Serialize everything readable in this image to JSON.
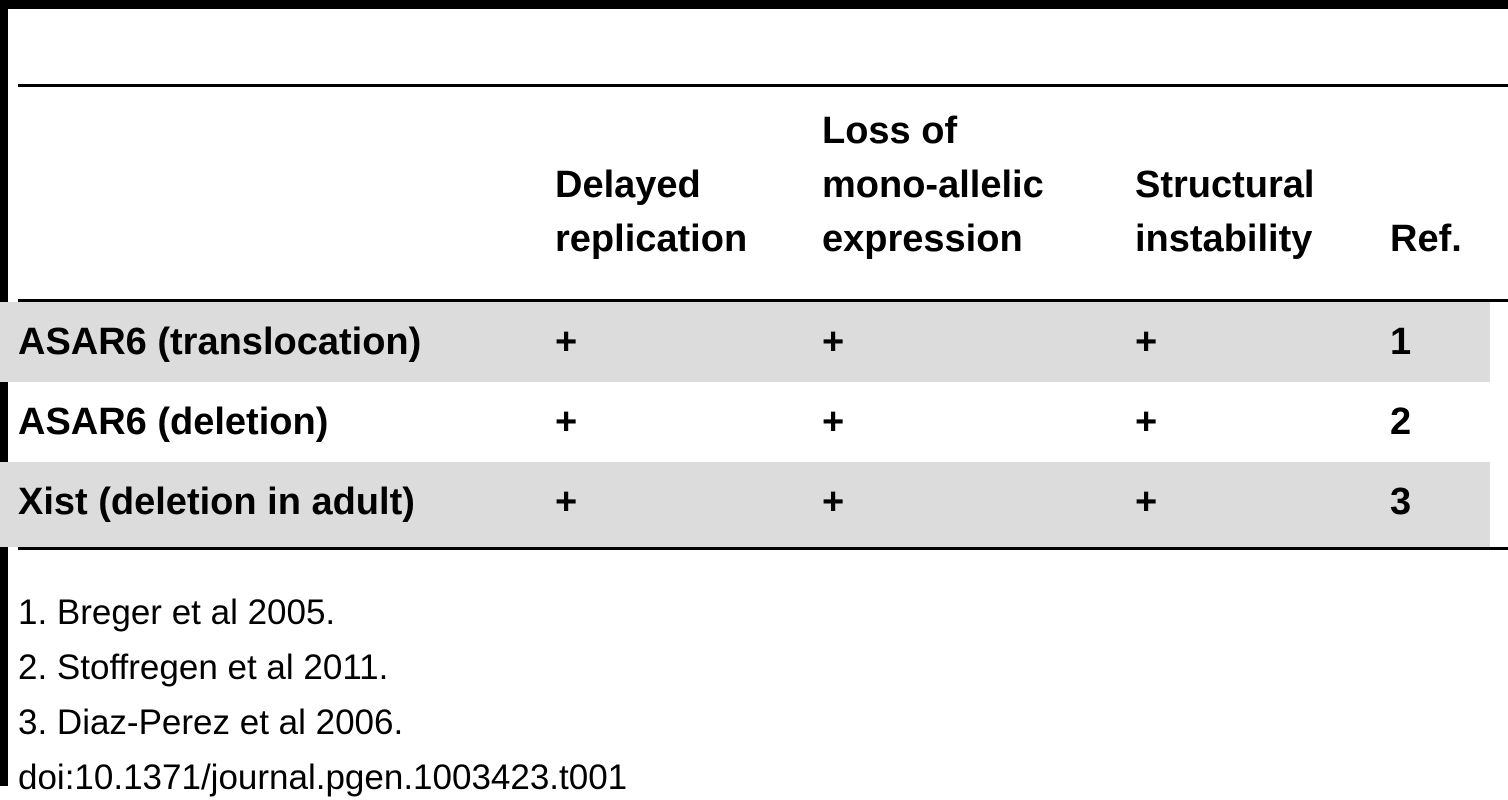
{
  "table": {
    "header": [
      [],
      [
        "Delayed",
        "replication"
      ],
      [
        "Loss of",
        "mono-allelic",
        "expression"
      ],
      [
        "Structural",
        "instability"
      ],
      [
        "Ref."
      ]
    ],
    "rows": [
      [
        "ASAR6 (translocation)",
        "+",
        "+",
        "+",
        "1"
      ],
      [
        "ASAR6 (deletion)",
        "+",
        "+",
        "+",
        "2"
      ],
      [
        "Xist (deletion in adult)",
        "+",
        "+",
        "+",
        "3"
      ]
    ]
  },
  "footnotes": [
    "1. Breger et al 2005.",
    "2. Stoffregen et al 2011.",
    "3. Diaz-Perez et al 2006."
  ],
  "doi": "doi:10.1371/journal.pgen.1003423.t001"
}
